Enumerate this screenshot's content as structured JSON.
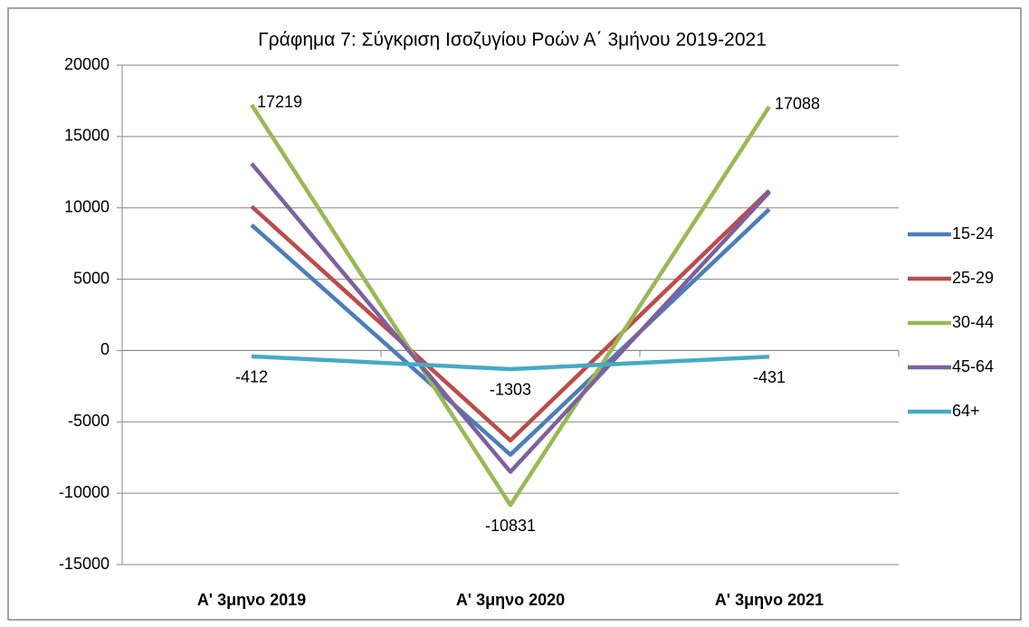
{
  "chart_data": {
    "type": "line",
    "title": "Γράφημα 7: Σύγκριση Ισοζυγίου Ροών Α΄ 3μήνου 2019-2021",
    "categories": [
      "Α' 3μηνο 2019",
      "Α' 3μηνο 2020",
      "Α' 3μηνο 2021"
    ],
    "series": [
      {
        "name": "15-24",
        "color": "#4a7ebb",
        "values": [
          8800,
          -7300,
          9900
        ]
      },
      {
        "name": "25-29",
        "color": "#be4b48",
        "values": [
          10100,
          -6300,
          11200
        ]
      },
      {
        "name": "30-44",
        "color": "#98b954",
        "values": [
          17219,
          -10831,
          17088
        ],
        "data_labels": true
      },
      {
        "name": "45-64",
        "color": "#7d60a0",
        "values": [
          13100,
          -8500,
          11100
        ]
      },
      {
        "name": "64+",
        "color": "#46aac5",
        "values": [
          -412,
          -1303,
          -431
        ],
        "data_labels": true
      }
    ],
    "ylim": [
      -15000,
      20000
    ],
    "yticks": [
      -15000,
      -10000,
      -5000,
      0,
      5000,
      10000,
      15000,
      20000
    ],
    "grid": true,
    "legend": "right"
  }
}
